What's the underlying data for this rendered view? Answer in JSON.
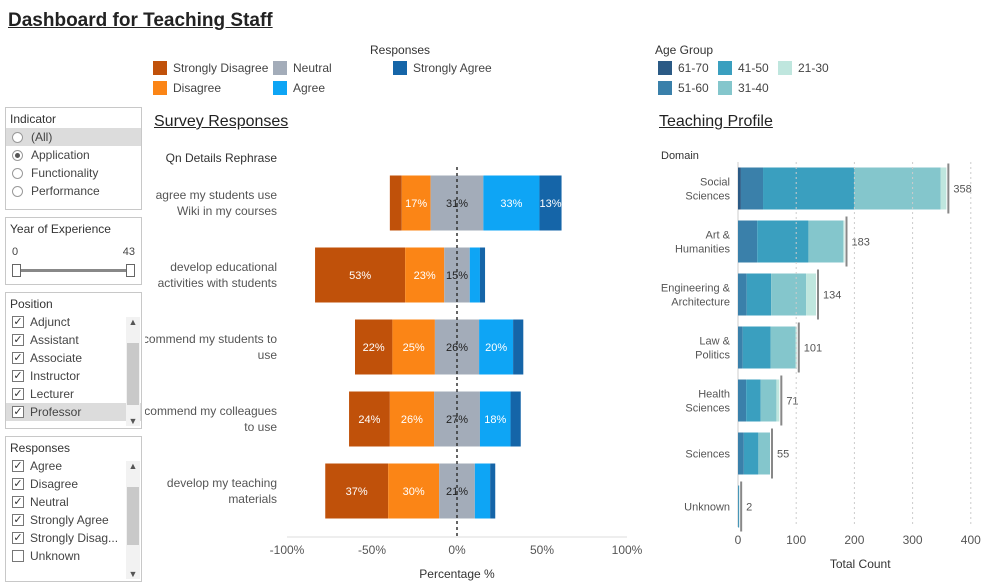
{
  "title": "Dashboard for Teaching Staff",
  "legends": {
    "responses": {
      "title": "Responses",
      "items": [
        {
          "label": "Strongly Disagree",
          "color": "#c0510a"
        },
        {
          "label": "Disagree",
          "color": "#fb8516"
        },
        {
          "label": "Neutral",
          "color": "#a3acb9"
        },
        {
          "label": "Agree",
          "color": "#0ea5f5"
        },
        {
          "label": "Strongly Agree",
          "color": "#1565a8"
        }
      ]
    },
    "age_group": {
      "title": "Age Group",
      "items": [
        {
          "label": "61-70",
          "color": "#2b5a85"
        },
        {
          "label": "41-50",
          "color": "#3a9fbf"
        },
        {
          "label": "21-30",
          "color": "#bfe6de"
        },
        {
          "label": "51-60",
          "color": "#3a80aa"
        },
        {
          "label": "31-40",
          "color": "#84c6cc"
        }
      ]
    }
  },
  "filters": {
    "indicator": {
      "title": "Indicator",
      "options": [
        {
          "label": "(All)",
          "selected": false
        },
        {
          "label": "Application",
          "selected": true
        },
        {
          "label": "Functionality",
          "selected": false
        },
        {
          "label": "Performance",
          "selected": false
        }
      ]
    },
    "year_of_experience": {
      "title": "Year of Experience",
      "min": "0",
      "max": "43"
    },
    "position": {
      "title": "Position",
      "options": [
        {
          "label": "Adjunct",
          "checked": true
        },
        {
          "label": "Assistant",
          "checked": true
        },
        {
          "label": "Associate",
          "checked": true
        },
        {
          "label": "Instructor",
          "checked": true
        },
        {
          "label": "Lecturer",
          "checked": true
        },
        {
          "label": "Professor",
          "checked": true
        }
      ]
    },
    "responses": {
      "title": "Responses",
      "options": [
        {
          "label": "Agree",
          "checked": true
        },
        {
          "label": "Disagree",
          "checked": true
        },
        {
          "label": "Neutral",
          "checked": true
        },
        {
          "label": "Strongly Agree",
          "checked": true
        },
        {
          "label": "Strongly Disag...",
          "checked": true
        },
        {
          "label": "Unknown",
          "checked": false
        }
      ]
    }
  },
  "chart_data": [
    {
      "type": "bar",
      "title": "Survey Responses",
      "row_header": "Qn Details Rephrase",
      "xlabel": "Percentage %",
      "xlim": [
        -100,
        100
      ],
      "xticks": [
        "-100%",
        "-50%",
        "0%",
        "50%",
        "100%"
      ],
      "categories": [
        "agree my students use Wiki in my courses",
        "develop educational activities with students",
        "recommend my students to use",
        "recommend my colleagues to use",
        "develop my teaching materials"
      ],
      "series": [
        {
          "name": "Strongly Disagree",
          "values": [
            7,
            53,
            22,
            24,
            37
          ],
          "labels": [
            "",
            "53%",
            "22%",
            "24%",
            "37%"
          ]
        },
        {
          "name": "Disagree",
          "values": [
            17,
            23,
            25,
            26,
            30
          ],
          "labels": [
            "17%",
            "23%",
            "25%",
            "26%",
            "30%"
          ]
        },
        {
          "name": "Neutral",
          "values": [
            31,
            15,
            26,
            27,
            21
          ],
          "labels": [
            "31%",
            "15%",
            "26%",
            "27%",
            "21%"
          ]
        },
        {
          "name": "Agree",
          "values": [
            33,
            6,
            20,
            18,
            9
          ],
          "labels": [
            "33%",
            "",
            "20%",
            "18%",
            ""
          ]
        },
        {
          "name": "Strongly Agree",
          "values": [
            13,
            3,
            6,
            6,
            3
          ],
          "labels": [
            "13%",
            "",
            "",
            "",
            ""
          ]
        }
      ]
    },
    {
      "type": "bar",
      "title": "Teaching Profile",
      "row_header": "Domain",
      "xlabel": "Total Count",
      "xlim": [
        0,
        420
      ],
      "xticks": [
        "0",
        "100",
        "200",
        "300",
        "400"
      ],
      "categories": [
        "Social Sciences",
        "Art & Humanities",
        "Engineering & Architecture",
        "Law & Politics",
        "Health Sciences",
        "Sciences",
        "Unknown"
      ],
      "totals": [
        "358",
        "183",
        "134",
        "101",
        "71",
        "55",
        "2"
      ],
      "series": [
        {
          "name": "61-70",
          "values": [
            5,
            0,
            0,
            0,
            0,
            0,
            0
          ]
        },
        {
          "name": "51-60",
          "values": [
            38,
            33,
            15,
            8,
            14,
            10,
            1
          ]
        },
        {
          "name": "41-50",
          "values": [
            157,
            88,
            42,
            48,
            25,
            25,
            1
          ]
        },
        {
          "name": "31-40",
          "values": [
            148,
            60,
            60,
            43,
            27,
            20,
            0
          ]
        },
        {
          "name": "21-30",
          "values": [
            10,
            2,
            17,
            2,
            5,
            0,
            0
          ]
        }
      ]
    }
  ]
}
